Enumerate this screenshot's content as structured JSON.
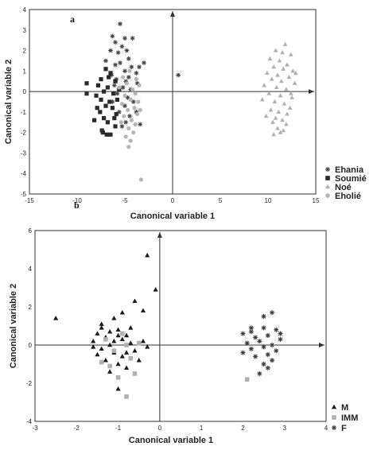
{
  "chart_data": [
    {
      "type": "scatter",
      "panel_label": "a",
      "xlabel": "Canonical variable 1",
      "ylabel": "Canonical variable 2",
      "xlim": [
        -15,
        15
      ],
      "ylim": [
        -5,
        4
      ],
      "xticks": [
        -15,
        -10,
        -5,
        0,
        5,
        10,
        15
      ],
      "yticks": [
        -5,
        -4,
        -3,
        -2,
        -1,
        0,
        1,
        2,
        3,
        4
      ],
      "grid": false,
      "legend_position": "bottom-right-outside",
      "series": [
        {
          "name": "Ehania",
          "marker": "asterisk",
          "color": "#444444",
          "points": [
            [
              -5.5,
              3.3
            ],
            [
              -6.3,
              2.7
            ],
            [
              -5.0,
              2.6
            ],
            [
              -4.2,
              2.6
            ],
            [
              -6.0,
              2.4
            ],
            [
              -5.3,
              2.2
            ],
            [
              -6.5,
              2.0
            ],
            [
              -4.8,
              2.0
            ],
            [
              -5.7,
              1.9
            ],
            [
              -4.6,
              1.6
            ],
            [
              -7.0,
              1.5
            ],
            [
              -3.0,
              1.4
            ],
            [
              -5.5,
              1.4
            ],
            [
              -6.0,
              1.3
            ],
            [
              -3.5,
              1.2
            ],
            [
              -4.3,
              1.2
            ],
            [
              -5.0,
              1.0
            ],
            [
              -3.8,
              0.9
            ],
            [
              -6.4,
              0.8
            ],
            [
              -4.6,
              0.7
            ],
            [
              -5.9,
              0.6
            ],
            [
              -4.9,
              0.5
            ],
            [
              -3.7,
              0.4
            ],
            [
              -6.1,
              0.3
            ],
            [
              -5.2,
              0.2
            ],
            [
              -4.4,
              0.1
            ],
            [
              -5.8,
              -0.1
            ],
            [
              -4.7,
              -0.3
            ],
            [
              -6.3,
              -0.5
            ],
            [
              -5.0,
              -0.7
            ],
            [
              -5.6,
              -1.0
            ],
            [
              -4.5,
              -1.2
            ],
            [
              -4.9,
              -1.5
            ],
            [
              -5.3,
              -1.7
            ],
            [
              -3.4,
              -1.6
            ],
            [
              -3.8,
              -1.0
            ],
            [
              -4.1,
              -0.5
            ],
            [
              0.6,
              0.8
            ]
          ]
        },
        {
          "name": "Soumié",
          "marker": "square",
          "color": "#2a2a2a",
          "points": [
            [
              -9.0,
              0.4
            ],
            [
              -9.0,
              -0.1
            ],
            [
              -7.0,
              1.1
            ],
            [
              -6.5,
              0.9
            ],
            [
              -7.5,
              0.6
            ],
            [
              -6.0,
              0.5
            ],
            [
              -7.8,
              0.3
            ],
            [
              -6.8,
              0.2
            ],
            [
              -7.2,
              0.0
            ],
            [
              -6.2,
              -0.1
            ],
            [
              -8.0,
              -0.2
            ],
            [
              -7.5,
              -0.4
            ],
            [
              -6.6,
              -0.5
            ],
            [
              -7.0,
              -0.7
            ],
            [
              -6.3,
              -0.8
            ],
            [
              -7.6,
              -1.0
            ],
            [
              -5.9,
              -1.1
            ],
            [
              -7.2,
              -1.3
            ],
            [
              -8.2,
              -1.4
            ],
            [
              -6.8,
              -1.5
            ],
            [
              -6.0,
              -1.7
            ],
            [
              -7.4,
              -1.9
            ],
            [
              -6.5,
              -2.1
            ],
            [
              -6.9,
              -2.1
            ],
            [
              -5.8,
              -0.4
            ],
            [
              -6.1,
              -1.3
            ],
            [
              -7.9,
              -0.8
            ],
            [
              -5.6,
              0.1
            ],
            [
              -6.7,
              0.7
            ],
            [
              -7.3,
              -2.0
            ]
          ]
        },
        {
          "name": "Noé",
          "marker": "triangle",
          "color": "#b0b0b0",
          "points": [
            [
              11.8,
              2.3
            ],
            [
              10.8,
              2.0
            ],
            [
              11.5,
              1.9
            ],
            [
              12.4,
              1.8
            ],
            [
              10.2,
              1.6
            ],
            [
              11.2,
              1.5
            ],
            [
              12.0,
              1.3
            ],
            [
              10.6,
              1.2
            ],
            [
              11.6,
              1.1
            ],
            [
              12.6,
              1.0
            ],
            [
              9.9,
              0.9
            ],
            [
              11.0,
              0.8
            ],
            [
              12.2,
              0.7
            ],
            [
              10.4,
              0.6
            ],
            [
              11.4,
              0.5
            ],
            [
              12.8,
              0.4
            ],
            [
              9.6,
              0.3
            ],
            [
              10.9,
              0.2
            ],
            [
              11.9,
              0.1
            ],
            [
              10.1,
              -0.1
            ],
            [
              11.3,
              -0.2
            ],
            [
              12.5,
              -0.3
            ],
            [
              9.4,
              -0.4
            ],
            [
              10.7,
              -0.5
            ],
            [
              11.7,
              -0.6
            ],
            [
              12.3,
              -0.8
            ],
            [
              10.3,
              -0.9
            ],
            [
              11.1,
              -1.0
            ],
            [
              12.0,
              -1.1
            ],
            [
              10.8,
              -1.3
            ],
            [
              11.5,
              -1.4
            ],
            [
              10.5,
              -1.5
            ],
            [
              11.9,
              -1.6
            ],
            [
              11.0,
              -1.8
            ],
            [
              11.3,
              -2.0
            ],
            [
              10.6,
              -2.1
            ],
            [
              11.6,
              -1.9
            ],
            [
              12.4,
              -0.1
            ],
            [
              9.8,
              -1.2
            ],
            [
              12.9,
              0.9
            ]
          ]
        },
        {
          "name": "Eholié",
          "marker": "circle",
          "color": "#b5b5b5",
          "points": [
            [
              -4.5,
              1.0
            ],
            [
              -5.2,
              0.7
            ],
            [
              -3.8,
              0.6
            ],
            [
              -4.8,
              0.4
            ],
            [
              -3.5,
              0.3
            ],
            [
              -5.6,
              0.2
            ],
            [
              -4.2,
              0.1
            ],
            [
              -3.9,
              -0.1
            ],
            [
              -5.0,
              -0.2
            ],
            [
              -4.4,
              -0.4
            ],
            [
              -3.6,
              -0.5
            ],
            [
              -5.3,
              -0.6
            ],
            [
              -4.0,
              -0.8
            ],
            [
              -4.7,
              -0.9
            ],
            [
              -3.7,
              -1.1
            ],
            [
              -5.1,
              -1.2
            ],
            [
              -4.3,
              -1.4
            ],
            [
              -3.9,
              -1.6
            ],
            [
              -4.6,
              -1.8
            ],
            [
              -4.1,
              -2.0
            ],
            [
              -4.9,
              -2.2
            ],
            [
              -4.4,
              -2.4
            ],
            [
              -4.6,
              -2.7
            ],
            [
              -3.3,
              -4.3
            ],
            [
              -5.4,
              -1.5
            ],
            [
              -3.4,
              -0.9
            ]
          ]
        }
      ]
    },
    {
      "type": "scatter",
      "panel_label": "b",
      "xlabel": "Canonical variable 1",
      "ylabel": "Canonical variable 2",
      "xlim": [
        -3,
        4
      ],
      "ylim": [
        -4,
        6
      ],
      "xticks": [
        -3,
        -2,
        -1,
        0,
        1,
        2,
        3,
        4
      ],
      "yticks": [
        -4,
        -2,
        0,
        2,
        4,
        6
      ],
      "grid": false,
      "legend_position": "bottom-right-outside",
      "series": [
        {
          "name": "M",
          "marker": "triangle",
          "color": "#1a1a1a",
          "points": [
            [
              -2.5,
              1.4
            ],
            [
              -1.4,
              1.1
            ],
            [
              -1.1,
              1.4
            ],
            [
              -0.3,
              4.7
            ],
            [
              -0.1,
              2.9
            ],
            [
              -0.6,
              2.3
            ],
            [
              -0.4,
              1.8
            ],
            [
              -0.9,
              1.7
            ],
            [
              -1.5,
              0.6
            ],
            [
              -1.3,
              0.4
            ],
            [
              -1.6,
              0.2
            ],
            [
              -1.0,
              0.8
            ],
            [
              -0.8,
              0.5
            ],
            [
              -1.2,
              0.0
            ],
            [
              -0.7,
              0.1
            ],
            [
              -1.4,
              -0.2
            ],
            [
              -1.1,
              -0.4
            ],
            [
              -0.9,
              -0.6
            ],
            [
              -1.3,
              -0.8
            ],
            [
              -0.6,
              -0.3
            ],
            [
              -1.0,
              -1.0
            ],
            [
              -0.8,
              -1.2
            ],
            [
              -1.2,
              -1.4
            ],
            [
              -1.0,
              -2.3
            ],
            [
              -0.4,
              0.2
            ],
            [
              -1.5,
              -0.5
            ],
            [
              -0.7,
              0.9
            ],
            [
              -1.2,
              0.7
            ],
            [
              -0.5,
              -0.8
            ],
            [
              -1.4,
              0.9
            ],
            [
              -0.9,
              0.3
            ],
            [
              -1.1,
              0.2
            ],
            [
              -0.3,
              -0.1
            ],
            [
              -1.6,
              -0.1
            ],
            [
              -0.8,
              -0.4
            ],
            [
              -1.0,
              0.5
            ]
          ]
        },
        {
          "name": "IMM",
          "marker": "square",
          "color": "#b0b0b0",
          "points": [
            [
              -1.0,
              -1.7
            ],
            [
              -0.8,
              -2.7
            ],
            [
              -0.6,
              -1.5
            ],
            [
              -1.3,
              0.3
            ],
            [
              -1.1,
              -0.3
            ],
            [
              -0.7,
              -0.7
            ],
            [
              -1.2,
              -1.1
            ],
            [
              -0.9,
              0.6
            ],
            [
              -0.5,
              0.1
            ],
            [
              -1.4,
              -0.9
            ],
            [
              2.1,
              -1.8
            ],
            [
              -0.8,
              0.0
            ]
          ]
        },
        {
          "name": "F",
          "marker": "asterisk",
          "color": "#3a3a3a",
          "points": [
            [
              2.7,
              1.7
            ],
            [
              2.5,
              1.5
            ],
            [
              2.2,
              0.9
            ],
            [
              2.5,
              0.9
            ],
            [
              2.8,
              0.8
            ],
            [
              2.0,
              0.6
            ],
            [
              2.6,
              0.5
            ],
            [
              2.3,
              0.4
            ],
            [
              2.9,
              0.3
            ],
            [
              2.4,
              0.2
            ],
            [
              2.1,
              0.1
            ],
            [
              2.7,
              0.0
            ],
            [
              2.5,
              -0.1
            ],
            [
              2.2,
              -0.2
            ],
            [
              2.8,
              -0.3
            ],
            [
              2.6,
              -0.5
            ],
            [
              2.3,
              -0.6
            ],
            [
              2.7,
              -0.8
            ],
            [
              2.5,
              -1.0
            ],
            [
              2.6,
              -1.2
            ],
            [
              2.4,
              -1.5
            ],
            [
              2.0,
              -0.4
            ],
            [
              2.9,
              0.6
            ],
            [
              2.2,
              0.7
            ]
          ]
        }
      ]
    }
  ]
}
